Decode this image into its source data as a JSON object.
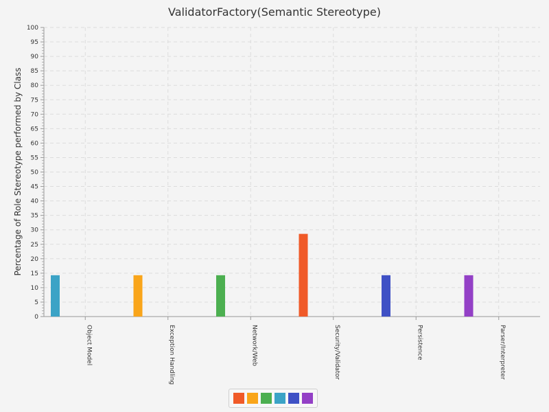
{
  "chart_data": {
    "type": "bar",
    "title": "ValidatorFactory(Semantic Stereotype)",
    "xlabel": "",
    "ylabel": "Percentage of Role Stereotype performed by Class",
    "ylim": [
      0,
      100
    ],
    "ytick_step": 5,
    "grid": true,
    "legend_position": "bottom",
    "categories": [
      "Object Model",
      "Exception Handling",
      "Network/Web",
      "Security/Validator",
      "Persistence",
      "Parser/Interpreter"
    ],
    "series": [
      {
        "color": "#f05a28",
        "values": [
          0,
          0,
          0,
          28.6,
          0,
          0
        ]
      },
      {
        "color": "#f9a51a",
        "values": [
          0,
          14.3,
          0,
          0,
          0,
          0
        ]
      },
      {
        "color": "#4caf50",
        "values": [
          0,
          0,
          14.3,
          0,
          0,
          0
        ]
      },
      {
        "color": "#3ba3c6",
        "values": [
          14.3,
          0,
          0,
          0,
          0,
          0
        ]
      },
      {
        "color": "#3f51c5",
        "values": [
          0,
          0,
          0,
          0,
          14.3,
          0
        ]
      },
      {
        "color": "#9340c6",
        "values": [
          0,
          0,
          0,
          0,
          0,
          14.3
        ]
      }
    ]
  }
}
